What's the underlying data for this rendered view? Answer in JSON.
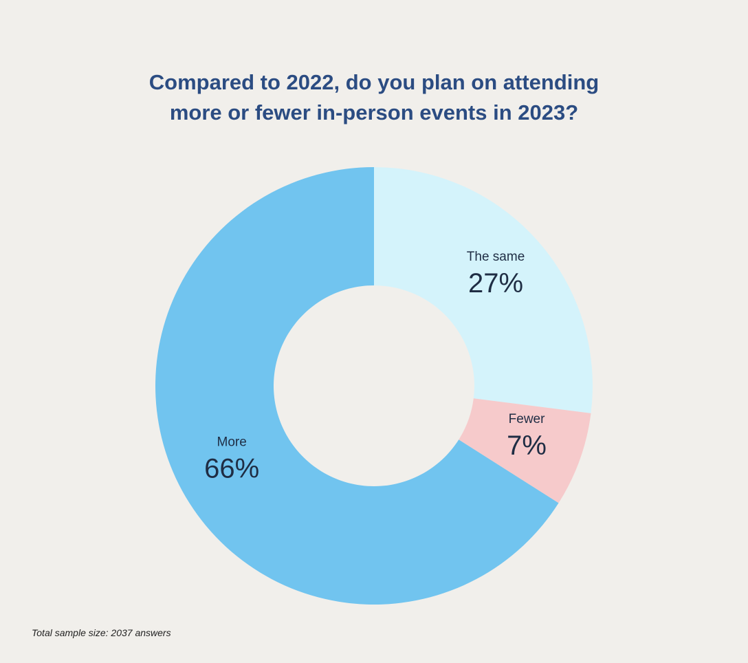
{
  "chart_data": {
    "type": "pie",
    "variant": "donut",
    "title": "Compared to 2022, do you plan on attending more or fewer in-person events in 2023?",
    "title_lines": [
      "Compared to 2022, do you plan on attending",
      "more or fewer in-person events in 2023?"
    ],
    "categories": [
      "The same",
      "Fewer",
      "More"
    ],
    "values": [
      27,
      7,
      66
    ],
    "value_labels": [
      "27%",
      "7%",
      "66%"
    ],
    "unit": "%",
    "colors": [
      "#d4f3fb",
      "#f6cacb",
      "#71c4ef"
    ],
    "legend": "none"
  },
  "footnote": "Total sample size: 2037 answers"
}
